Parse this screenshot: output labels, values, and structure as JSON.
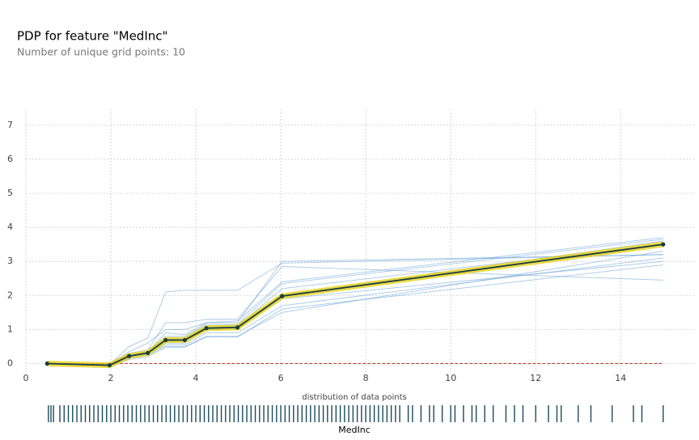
{
  "chart_data": {
    "type": "line",
    "title": "PDP for feature \"MedInc\"",
    "subtitle": "Number of unique grid points: 10",
    "xlabel": "MedInc",
    "rug_label": "distribution of data points",
    "x": [
      0.5,
      1.97,
      2.43,
      2.87,
      3.29,
      3.74,
      4.25,
      4.98,
      6.03,
      15.0
    ],
    "values": [
      0,
      -0.05,
      0.22,
      0.31,
      0.69,
      0.69,
      1.04,
      1.06,
      1.98,
      3.5
    ],
    "color": "#1a3c40",
    "band_color": "#e6d21a",
    "ice_color": "#5b9bd5",
    "ice": [
      [
        0,
        -0.03,
        0.5,
        0.75,
        2.1,
        2.15,
        2.15,
        2.15,
        2.95,
        3.2
      ],
      [
        0,
        -0.05,
        0.2,
        0.3,
        0.6,
        0.6,
        1.0,
        1.0,
        2.0,
        3.6
      ],
      [
        0,
        -0.08,
        0.15,
        0.25,
        0.5,
        0.5,
        0.8,
        0.8,
        1.5,
        3.3
      ],
      [
        0,
        -0.06,
        0.25,
        0.35,
        0.9,
        0.85,
        1.2,
        1.25,
        2.4,
        3.7
      ],
      [
        0,
        -0.04,
        0.3,
        0.4,
        1.2,
        1.2,
        1.3,
        1.3,
        2.85,
        2.45
      ],
      [
        0,
        -0.07,
        0.18,
        0.28,
        0.55,
        0.55,
        0.9,
        0.9,
        1.7,
        3.1
      ],
      [
        0,
        -0.05,
        0.22,
        0.32,
        0.75,
        0.75,
        1.1,
        1.1,
        2.2,
        3.5
      ],
      [
        0,
        -0.06,
        0.2,
        0.3,
        0.65,
        0.7,
        1.05,
        1.1,
        1.9,
        3.0
      ],
      [
        0,
        -0.02,
        0.35,
        0.6,
        1.0,
        1.0,
        1.2,
        1.2,
        3.0,
        3.2
      ],
      [
        0,
        -0.08,
        0.12,
        0.2,
        0.48,
        0.48,
        0.78,
        0.78,
        1.6,
        2.9
      ],
      [
        0,
        -0.05,
        0.24,
        0.34,
        0.8,
        0.8,
        1.15,
        1.15,
        2.35,
        3.65
      ]
    ],
    "zero_line_color": "#b03a2e",
    "rug_color": "#1a4b5a",
    "rug": [
      0.53,
      0.59,
      0.65,
      0.8,
      0.9,
      1.0,
      1.1,
      1.2,
      1.3,
      1.4,
      1.5,
      1.6,
      1.7,
      1.8,
      1.9,
      2.0,
      2.1,
      2.2,
      2.3,
      2.4,
      2.5,
      2.6,
      2.7,
      2.8,
      2.9,
      3.0,
      3.1,
      3.2,
      3.3,
      3.4,
      3.5,
      3.6,
      3.7,
      3.8,
      3.9,
      4.0,
      4.1,
      4.2,
      4.3,
      4.4,
      4.5,
      4.6,
      4.7,
      4.8,
      4.9,
      5.0,
      5.1,
      5.2,
      5.3,
      5.4,
      5.5,
      5.6,
      5.7,
      5.8,
      5.9,
      6.0,
      6.1,
      6.2,
      6.3,
      6.4,
      6.5,
      6.6,
      6.7,
      6.8,
      6.9,
      7.0,
      7.1,
      7.2,
      7.3,
      7.4,
      7.5,
      7.6,
      7.7,
      7.8,
      7.9,
      8.0,
      8.1,
      8.2,
      8.3,
      8.4,
      8.5,
      8.6,
      8.7,
      8.8,
      9.0,
      9.1,
      9.3,
      9.5,
      9.6,
      9.8,
      10.0,
      10.1,
      10.3,
      10.5,
      10.6,
      10.8,
      11.0,
      11.3,
      11.5,
      11.7,
      12.0,
      12.3,
      12.5,
      12.6,
      13.0,
      13.3,
      13.8,
      14.3,
      14.5,
      15.0
    ],
    "xlim": [
      0,
      15.73
    ],
    "ylim": [
      -0.25,
      7.47
    ],
    "xticks": [
      0,
      2,
      4,
      6,
      8,
      10,
      12,
      14
    ],
    "yticks": [
      0,
      1,
      2,
      3,
      4,
      5,
      6,
      7
    ],
    "grid": true
  }
}
